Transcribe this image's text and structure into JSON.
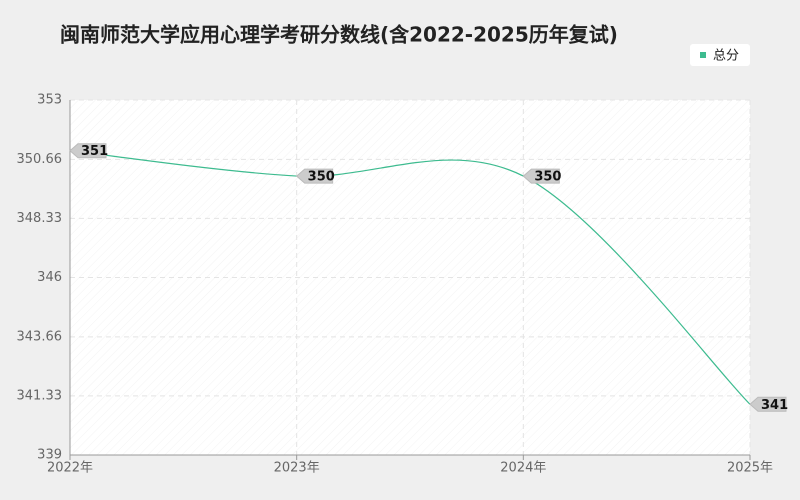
{
  "chart_data": {
    "type": "line",
    "title": "闽南师范大学应用心理学考研分数线(含2022-2025历年复试)",
    "categories": [
      "2022年",
      "2023年",
      "2024年",
      "2025年"
    ],
    "series": [
      {
        "name": "总分",
        "color": "#3dbb8f",
        "values": [
          351,
          350,
          350,
          341
        ]
      }
    ],
    "ylim": [
      339,
      353
    ],
    "yticks": [
      339,
      341.33,
      343.66,
      346,
      348.33,
      350.66,
      353
    ],
    "grid": true,
    "smooth": true,
    "legend": "top-right"
  }
}
